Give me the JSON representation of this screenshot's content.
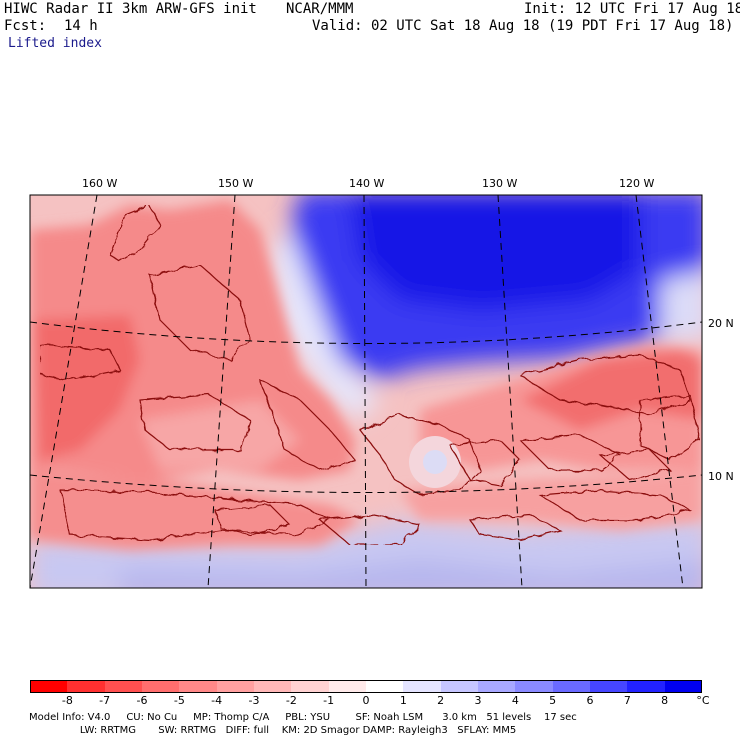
{
  "header": {
    "model_title": "HIWC Radar II 3km ARW-GFS init",
    "source": "NCAR/MMM",
    "init": "Init: 12 UTC Fri 17 Aug 18",
    "fcst_label": "Fcst:",
    "fcst_value": "14 h",
    "valid": "Valid: 02 UTC Sat 18 Aug 18 (19 PDT Fri 17 Aug 18)",
    "field": "Lifted index"
  },
  "map": {
    "lon_labels": [
      "160 W",
      "150 W",
      "140 W",
      "130 W",
      "120 W"
    ],
    "lat_labels": [
      "20 N",
      "10 N"
    ],
    "colors": {
      "contour": "#8b1010",
      "gridline": "#000000",
      "negative_dark": "#f26a6a",
      "negative_mid": "#f7a0a0",
      "neutral": "#eeeef8",
      "positive": "#1a1aee"
    }
  },
  "colorbar": {
    "labels": [
      "-8",
      "-7",
      "-6",
      "-5",
      "-4",
      "-3",
      "-2",
      "-1",
      "0",
      "1",
      "2",
      "3",
      "4",
      "5",
      "6",
      "7",
      "8"
    ],
    "unit": "°C",
    "colors": [
      "#ff0000",
      "#ff3030",
      "#ff5050",
      "#ff6e6e",
      "#ff8888",
      "#ffa0a0",
      "#ffb8b8",
      "#ffd2d2",
      "#ffeaea",
      "#ffffff",
      "#e4e4ff",
      "#c6c6ff",
      "#a8a8ff",
      "#8a8aff",
      "#6a6aff",
      "#4646ff",
      "#2222ff",
      "#0000f0"
    ]
  },
  "footer": {
    "line1": "Model Info: V4.0     CU: No Cu     MP: Thomp C/A     PBL: YSU        SF: Noah LSM      3.0 km   51 levels    17 sec",
    "line2": "                LW: RRTMG       SW: RRTMG   DIFF: full    KM: 2D Smagor DAMP: Rayleigh3   SFLAY: MM5"
  }
}
